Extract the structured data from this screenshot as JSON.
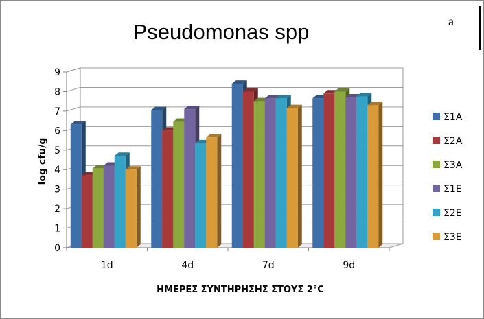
{
  "panel_label": "a",
  "chart_data": {
    "type": "bar",
    "title": "Pseudomonas spp",
    "xlabel": "ΗΜΕΡΕΣ ΣΥΝΤΗΡΗΣΗΣ ΣΤΟΥΣ 2°C",
    "ylabel": "log cfu/g",
    "categories": [
      "1d",
      "4d",
      "7d",
      "9d"
    ],
    "ylim": [
      0,
      9
    ],
    "yticks": [
      "0",
      "1",
      "2",
      "3",
      "4",
      "5",
      "6",
      "7",
      "8",
      "9"
    ],
    "grid": true,
    "legend_position": "right",
    "three_d": true,
    "series": [
      {
        "name": "Σ1Α",
        "color": "#3E6FA8",
        "values": [
          6.3,
          7.05,
          8.4,
          7.65
        ]
      },
      {
        "name": "Σ2Α",
        "color": "#A8393A",
        "values": [
          3.7,
          6.0,
          8.0,
          7.9
        ]
      },
      {
        "name": "Σ3Α",
        "color": "#8DA83E",
        "values": [
          4.05,
          6.45,
          7.5,
          8.0
        ]
      },
      {
        "name": "Σ1Ε",
        "color": "#7366A0",
        "values": [
          4.2,
          7.1,
          7.65,
          7.7
        ]
      },
      {
        "name": "Σ2Ε",
        "color": "#35A3C6",
        "values": [
          4.7,
          5.35,
          7.65,
          7.75
        ]
      },
      {
        "name": "Σ3Ε",
        "color": "#D99B3A",
        "values": [
          4.0,
          5.65,
          7.15,
          7.3
        ]
      }
    ]
  }
}
